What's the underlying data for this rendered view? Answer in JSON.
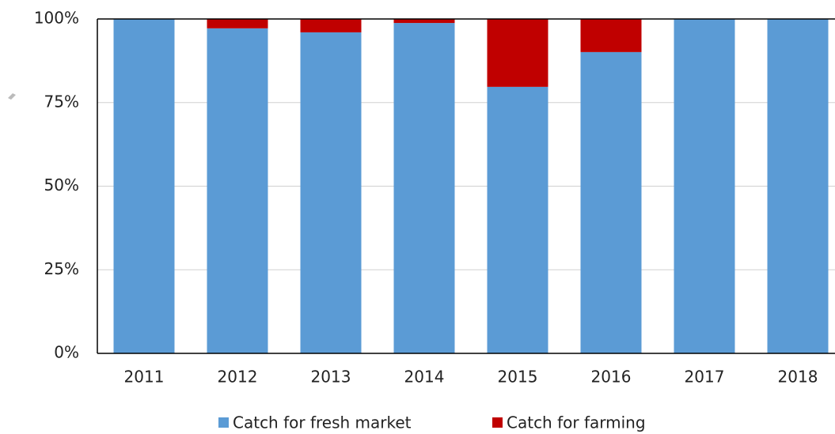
{
  "chart_data": {
    "type": "stacked_bar",
    "categories": [
      "2011",
      "2012",
      "2013",
      "2014",
      "2015",
      "2016",
      "2017",
      "2018"
    ],
    "series": [
      {
        "name": "Catch for fresh market",
        "color": "#5b9bd5",
        "values": [
          100,
          97.2,
          96.0,
          98.8,
          79.7,
          90.1,
          100,
          100
        ]
      },
      {
        "name": "Catch for farming",
        "color": "#c00000",
        "values": [
          0,
          2.8,
          4.0,
          1.2,
          20.3,
          9.9,
          0,
          0
        ]
      }
    ],
    "ylim": [
      0,
      100
    ],
    "yticks": [
      {
        "value": 0,
        "label": "0%"
      },
      {
        "value": 25,
        "label": "25%"
      },
      {
        "value": 50,
        "label": "50%"
      },
      {
        "value": 75,
        "label": "75%"
      },
      {
        "value": 100,
        "label": "100%"
      }
    ],
    "grid": true,
    "legend": "bottom"
  }
}
